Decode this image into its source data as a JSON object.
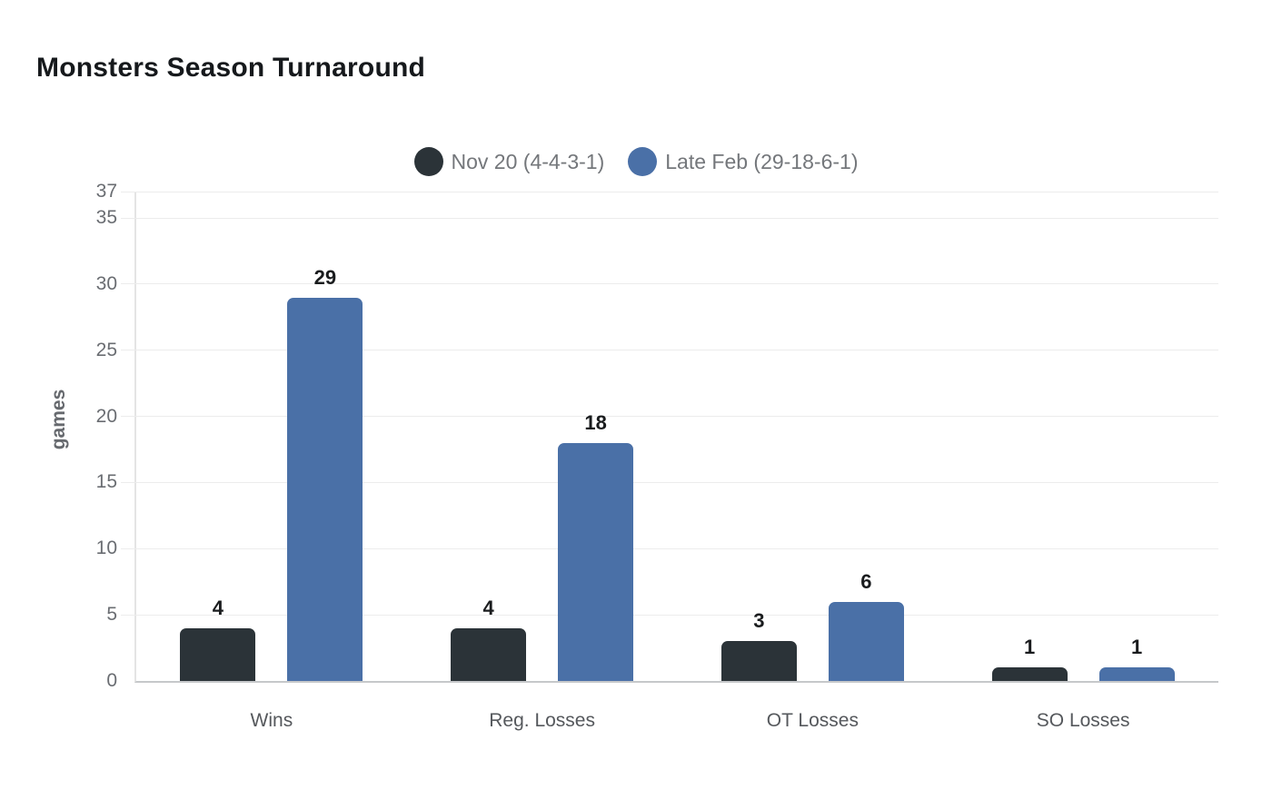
{
  "title": "Monsters Season Turnaround",
  "colors": {
    "background": "#ffffff",
    "series_dark": "#2b3338",
    "series_blue": "#4a70a7",
    "gridline": "#ececec",
    "axis_line": "#e4e4e4",
    "baseline": "#c6c8ca",
    "tick_text": "#6a6d72",
    "category_text": "#55585c",
    "value_text": "#1a1c1e",
    "legend_text": "#74777b",
    "title_text": "#16191c"
  },
  "legend": [
    {
      "label": "Nov 20 (4-4-3-1)",
      "color": "#2b3338"
    },
    {
      "label": "Late Feb (29-18-6-1)",
      "color": "#4a70a7"
    }
  ],
  "chart_data": {
    "type": "bar",
    "title": "Monsters Season Turnaround",
    "categories": [
      "Wins",
      "Reg. Losses",
      "OT Losses",
      "SO Losses"
    ],
    "series": [
      {
        "name": "Nov 20 (4-4-3-1)",
        "color": "#2b3338",
        "values": [
          4,
          4,
          3,
          1
        ]
      },
      {
        "name": "Late Feb (29-18-6-1)",
        "color": "#4a70a7",
        "values": [
          29,
          18,
          6,
          1
        ]
      }
    ],
    "xlabel": "",
    "ylabel": "games",
    "ylim": [
      0,
      37
    ],
    "yticks": [
      0,
      5,
      10,
      15,
      20,
      25,
      30,
      35,
      37
    ],
    "grid": true,
    "legend_position": "top",
    "value_labels": true
  }
}
